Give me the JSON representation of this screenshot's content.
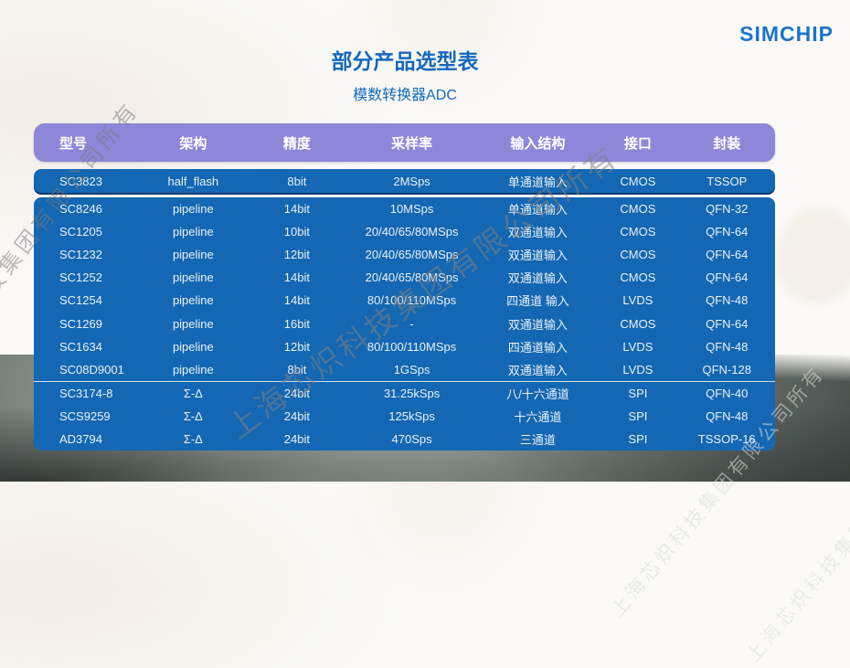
{
  "brand": {
    "logo_text": "SIMCHIP"
  },
  "page_header": {
    "title": "部分产品选型表",
    "subtitle": "模数转换器ADC"
  },
  "watermark": {
    "text": "上海芯炽科技集团有限公司所有"
  },
  "colors": {
    "header_purple": "#8D87D9",
    "row_blue": "#1467B2",
    "title_blue": "#1568BE",
    "logo_blue": "#1B74C9",
    "divider_navy": "#0A3C6E"
  },
  "table": {
    "columns": [
      "型号",
      "架构",
      "精度",
      "采样率",
      "输入结构",
      "接口",
      "封装"
    ],
    "groups": [
      {
        "name": "half_flash",
        "rows": [
          [
            "SC3823",
            "half_flash",
            "8bit",
            "2MSps",
            "单通道输入",
            "CMOS",
            "TSSOP"
          ]
        ]
      },
      {
        "name": "pipeline",
        "rows": [
          [
            "SC8246",
            "pipeline",
            "14bit",
            "10MSps",
            "单通道输入",
            "CMOS",
            "QFN-32"
          ],
          [
            "SC1205",
            "pipeline",
            "10bit",
            "20/40/65/80MSps",
            "双通道输入",
            "CMOS",
            "QFN-64"
          ],
          [
            "SC1232",
            "pipeline",
            "12bit",
            "20/40/65/80MSps",
            "双通道输入",
            "CMOS",
            "QFN-64"
          ],
          [
            "SC1252",
            "pipeline",
            "14bit",
            "20/40/65/80MSps",
            "双通道输入",
            "CMOS",
            "QFN-64"
          ],
          [
            "SC1254",
            "pipeline",
            "14bit",
            "80/100/110MSps",
            "四通道 输入",
            "LVDS",
            "QFN-48"
          ],
          [
            "SC1269",
            "pipeline",
            "16bit",
            "-",
            "双通道输入",
            "CMOS",
            "QFN-64"
          ],
          [
            "SC1634",
            "pipeline",
            "12bit",
            "80/100/110MSps",
            "四通道输入",
            "LVDS",
            "QFN-48"
          ],
          [
            "SC08D9001",
            "pipeline",
            "8bit",
            "1GSps",
            "双通道输入",
            "LVDS",
            "QFN-128"
          ]
        ]
      },
      {
        "name": "sigma-delta",
        "rows": [
          [
            "SC3174-8",
            "Σ-Δ",
            "24bit",
            "31.25kSps",
            "八/十六通道",
            "SPI",
            "QFN-40"
          ],
          [
            "SCS9259",
            "Σ-Δ",
            "24bit",
            "125kSps",
            "十六通道",
            "SPI",
            "QFN-48"
          ],
          [
            "AD3794",
            "Σ-Δ",
            "24bit",
            "470Sps",
            "三通道",
            "SPI",
            "TSSOP-16"
          ]
        ]
      }
    ]
  }
}
